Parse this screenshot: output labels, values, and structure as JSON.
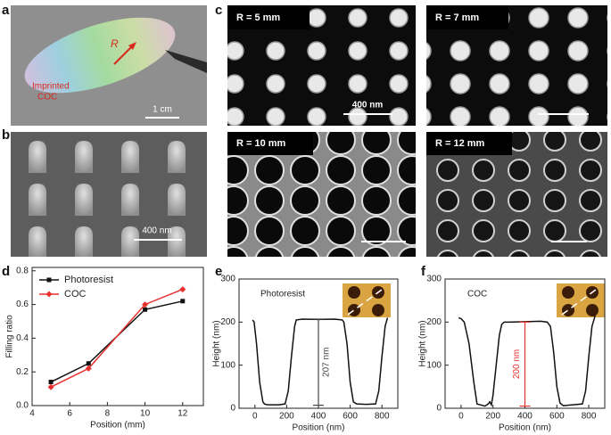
{
  "panel_labels": [
    "a",
    "b",
    "c",
    "d",
    "e",
    "f"
  ],
  "photo": {
    "radius_label": "R",
    "material_label": [
      "Imprinted",
      "COC"
    ],
    "scale_bar": "1 cm"
  },
  "sem_side": {
    "scale_bar": "400 nm"
  },
  "sem_top": [
    {
      "title": "R = 5 mm",
      "scale_bar": "400 nm"
    },
    {
      "title": "R = 7 mm"
    },
    {
      "title": "R = 10 mm"
    },
    {
      "title": "R = 12 mm"
    }
  ],
  "chart_data": [
    {
      "type": "line",
      "x_label": "Position (mm)",
      "y_label": "Filling ratio",
      "x": [
        5,
        7,
        10,
        12
      ],
      "series": [
        {
          "name": "Photoresist",
          "color": "#111111",
          "marker": "square",
          "values": [
            0.14,
            0.25,
            0.57,
            0.62
          ]
        },
        {
          "name": "COC",
          "color": "#e8312f",
          "marker": "diamond",
          "values": [
            0.11,
            0.22,
            0.6,
            0.69
          ]
        }
      ],
      "xlim": [
        4,
        13.1
      ],
      "xticks": [
        4,
        6,
        8,
        10,
        12
      ],
      "ylim": [
        0,
        0.82
      ],
      "yticks": [
        {
          "value": 0,
          "label": "0.0"
        },
        {
          "value": 0.2,
          "label": "0.2"
        },
        {
          "value": 0.4,
          "label": "0.4"
        },
        {
          "value": 0.6,
          "label": "0.6"
        },
        {
          "value": 0.8,
          "label": "0.8"
        }
      ],
      "legend": "upper-left"
    },
    {
      "type": "line",
      "x_label": "Position (nm)",
      "y_label": "Height (nm)",
      "inset_label": "Photoresist",
      "x": [
        -15,
        -5,
        10,
        30,
        50,
        60,
        80,
        150,
        190,
        210,
        230,
        250,
        260,
        300,
        400,
        500,
        550,
        560,
        580,
        600,
        620,
        640,
        700,
        760,
        780,
        800,
        820,
        835
      ],
      "series": [
        {
          "color": "#111111",
          "values": [
            205,
            200,
            150,
            60,
            15,
            10,
            8,
            8,
            10,
            40,
            120,
            190,
            205,
            207,
            206,
            207,
            205,
            200,
            150,
            60,
            15,
            10,
            9,
            10,
            40,
            120,
            190,
            210
          ]
        }
      ],
      "xlim": [
        -100,
        900
      ],
      "xticks": [
        0,
        200,
        400,
        600,
        800
      ],
      "ylim": [
        0,
        300
      ],
      "yticks": [
        0,
        100,
        200,
        300
      ],
      "annotation": {
        "text": "207 nm",
        "x": 400,
        "values": [
          7,
          207
        ],
        "color": "#444444",
        "side": "right"
      }
    },
    {
      "type": "line",
      "x_label": "Position (nm)",
      "y_label": "Height (nm)",
      "inset_label": "COC",
      "x": [
        -15,
        0,
        20,
        50,
        80,
        100,
        150,
        170,
        180,
        190,
        200,
        220,
        240,
        255,
        270,
        300,
        400,
        500,
        540,
        560,
        580,
        600,
        620,
        640,
        700,
        760,
        780,
        800,
        820,
        840
      ],
      "series": [
        {
          "color": "#111111",
          "values": [
            210,
            208,
            200,
            150,
            60,
            10,
            5,
            10,
            15,
            8,
            30,
            100,
            170,
            195,
            200,
            200,
            201,
            202,
            200,
            190,
            130,
            50,
            12,
            6,
            8,
            10,
            40,
            120,
            190,
            215
          ]
        }
      ],
      "xlim": [
        -100,
        900
      ],
      "xticks": [
        0,
        200,
        400,
        600,
        800
      ],
      "ylim": [
        0,
        300
      ],
      "yticks": [
        0,
        100,
        200,
        300
      ],
      "annotation": {
        "text": "200 nm",
        "x": 400,
        "values": [
          5,
          200
        ],
        "color": "#e8312f",
        "side": "left"
      }
    }
  ]
}
